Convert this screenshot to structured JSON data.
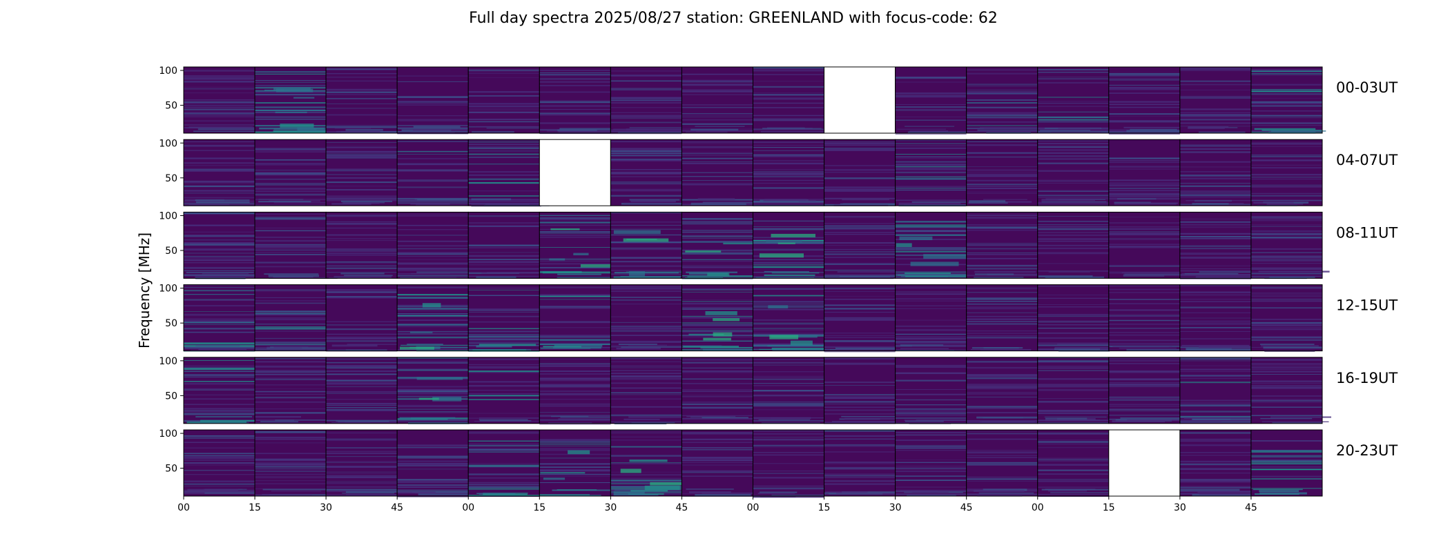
{
  "chart_data": {
    "type": "heatmap",
    "title": "Full day spectra 2025/08/27 station: GREENLAND with focus-code: 62",
    "ylabel": "Frequency [MHz]",
    "xlabel": "",
    "ylim": [
      10,
      105
    ],
    "yticks": [
      50,
      100
    ],
    "xtick_labels": [
      "00",
      "15",
      "30",
      "45",
      "00",
      "15",
      "30",
      "45",
      "00",
      "15",
      "30",
      "45",
      "00",
      "15",
      "30",
      "45"
    ],
    "panels_per_row": 16,
    "colormap": [
      "#440154",
      "#472d7b",
      "#3b528b",
      "#2c728e",
      "#21918c",
      "#28ae80"
    ],
    "rows": [
      {
        "label": "00-03UT",
        "missing": [
          9
        ],
        "bright": [
          [
            1,
            0.9
          ],
          [
            15,
            0.35
          ],
          [
            11,
            0.25
          ],
          [
            12,
            0.25
          ]
        ]
      },
      {
        "label": "04-07UT",
        "missing": [
          5
        ],
        "bright": [
          [
            4,
            0.3
          ],
          [
            3,
            0.25
          ],
          [
            10,
            0.2
          ]
        ]
      },
      {
        "label": "08-11UT",
        "missing": [],
        "bright": [
          [
            5,
            0.5
          ],
          [
            6,
            0.45
          ],
          [
            7,
            0.4
          ],
          [
            8,
            0.45
          ],
          [
            10,
            0.45
          ]
        ]
      },
      {
        "label": "12-15UT",
        "missing": [],
        "bright": [
          [
            3,
            0.45
          ],
          [
            4,
            0.35
          ],
          [
            5,
            0.35
          ],
          [
            7,
            0.6
          ],
          [
            8,
            0.45
          ],
          [
            0,
            0.3
          ],
          [
            1,
            0.3
          ]
        ]
      },
      {
        "label": "16-19UT",
        "missing": [],
        "bright": [
          [
            0,
            0.35
          ],
          [
            3,
            0.4
          ],
          [
            4,
            0.3
          ],
          [
            14,
            0.25
          ]
        ]
      },
      {
        "label": "20-23UT",
        "missing": [
          13
        ],
        "bright": [
          [
            4,
            0.35
          ],
          [
            5,
            0.4
          ],
          [
            6,
            0.6
          ],
          [
            15,
            0.35
          ]
        ]
      }
    ]
  }
}
